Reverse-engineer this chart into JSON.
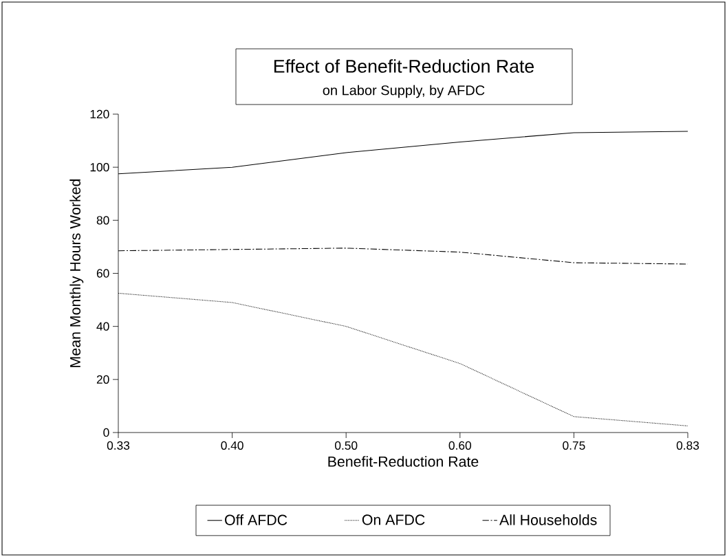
{
  "chart_data": {
    "type": "line",
    "title": "Effect of Benefit-Reduction Rate",
    "subtitle": "on Labor Supply, by AFDC",
    "xlabel": "Benefit-Reduction Rate",
    "ylabel": "Mean Monthly Hours Worked",
    "categories": [
      "0.33",
      "0.40",
      "0.50",
      "0.60",
      "0.75",
      "0.83"
    ],
    "series": [
      {
        "name": "Off AFDC",
        "color": "#000000",
        "line_style": "solid",
        "values": [
          97.5,
          100,
          105.5,
          109.5,
          113,
          113.5
        ]
      },
      {
        "name": "On AFDC",
        "color": "#000000",
        "line_style": "dotted",
        "values": [
          52.5,
          49,
          40,
          26,
          6,
          2.5
        ]
      },
      {
        "name": "All Households",
        "color": "#000000",
        "line_style": "dashed",
        "values": [
          68.5,
          69,
          69.5,
          68,
          64,
          63.5
        ]
      }
    ],
    "ylim": [
      0,
      120
    ],
    "yticks": [
      0,
      20,
      40,
      60,
      80,
      100,
      120
    ],
    "grid": false,
    "legend": "bottom",
    "marker": "none"
  }
}
